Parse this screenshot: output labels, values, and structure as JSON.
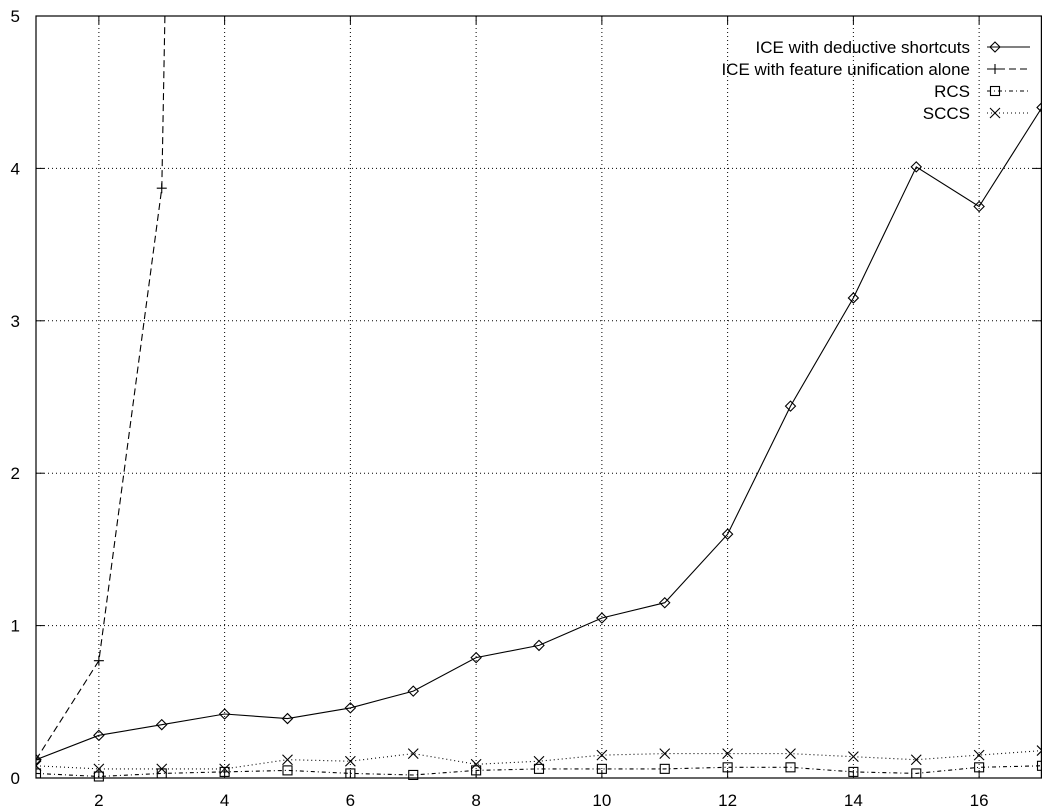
{
  "chart_data": {
    "type": "line",
    "title": "",
    "xlabel": "",
    "ylabel": "",
    "xlim": [
      1,
      17
    ],
    "ylim": [
      0,
      5
    ],
    "x_ticks": [
      2,
      4,
      6,
      8,
      10,
      12,
      14,
      16
    ],
    "y_ticks": [
      0,
      1,
      2,
      3,
      4,
      5
    ],
    "grid": true,
    "legend_position": "top-right",
    "series": [
      {
        "name": "ICE with deductive shortcuts",
        "marker": "diamond",
        "dash": "solid",
        "x": [
          1,
          2,
          3,
          4,
          5,
          6,
          7,
          8,
          9,
          10,
          11,
          12,
          13,
          14,
          15,
          16,
          17
        ],
        "y": [
          0.12,
          0.28,
          0.35,
          0.42,
          0.39,
          0.46,
          0.57,
          0.79,
          0.87,
          1.05,
          1.15,
          1.6,
          2.44,
          3.15,
          4.01,
          3.75,
          4.4
        ]
      },
      {
        "name": "ICE with feature unification alone",
        "marker": "plus",
        "dash": "dashed",
        "x": [
          1,
          2,
          3,
          3.05
        ],
        "y": [
          0.12,
          0.77,
          3.87,
          5
        ]
      },
      {
        "name": "RCS",
        "marker": "square",
        "dash": "dotdash",
        "x": [
          1,
          2,
          3,
          4,
          5,
          6,
          7,
          8,
          9,
          10,
          11,
          12,
          13,
          14,
          15,
          16,
          17
        ],
        "y": [
          0.03,
          0.01,
          0.03,
          0.04,
          0.05,
          0.03,
          0.02,
          0.05,
          0.06,
          0.06,
          0.06,
          0.07,
          0.07,
          0.04,
          0.03,
          0.07,
          0.08
        ]
      },
      {
        "name": "SCCS",
        "marker": "cross",
        "dash": "dotted",
        "x": [
          1,
          2,
          3,
          4,
          5,
          6,
          7,
          8,
          9,
          10,
          11,
          12,
          13,
          14,
          15,
          16,
          17
        ],
        "y": [
          0.08,
          0.06,
          0.06,
          0.06,
          0.12,
          0.11,
          0.16,
          0.09,
          0.11,
          0.15,
          0.16,
          0.16,
          0.16,
          0.14,
          0.12,
          0.15,
          0.18
        ]
      }
    ]
  }
}
